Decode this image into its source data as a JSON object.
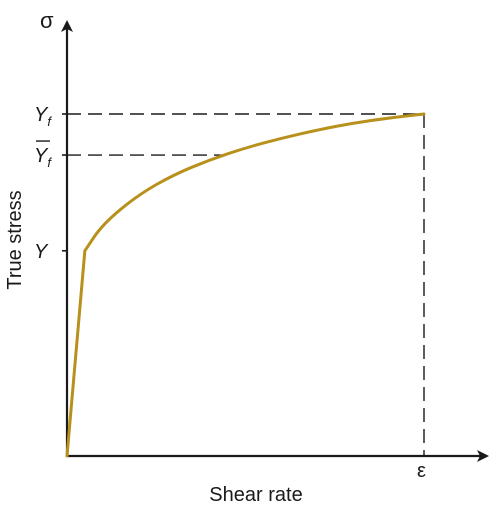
{
  "chart_data": {
    "type": "line",
    "title": "",
    "xlabel": "Shear rate",
    "ylabel": "True stress",
    "x_axis_symbol": "ε",
    "y_axis_symbol": "σ",
    "xlim": [
      0,
      1.0
    ],
    "ylim": [
      0,
      1.0
    ],
    "y_ticks": [
      {
        "key": "yf",
        "label": "Y",
        "subscript": "f",
        "overline": false,
        "value": 1.0
      },
      {
        "key": "yfbar",
        "label": "Y",
        "subscript": "f",
        "overline": true,
        "value": 0.88
      },
      {
        "key": "y",
        "label": "Y",
        "subscript": "",
        "overline": false,
        "value": 0.6
      }
    ],
    "series": [
      {
        "color": "#b8901c",
        "x": [
          0.0,
          0.05,
          0.1,
          0.2,
          0.3,
          0.4,
          0.5,
          0.6,
          0.7,
          0.8,
          0.9,
          1.0
        ],
        "y": [
          0.0,
          0.6,
          0.678,
          0.764,
          0.823,
          0.866,
          0.901,
          0.929,
          0.953,
          0.973,
          0.988,
          1.0
        ]
      }
    ],
    "guides": [
      {
        "type": "horizontal-dashed",
        "y": 1.0,
        "x_to": 1.0
      },
      {
        "type": "horizontal-dashed",
        "y": 0.88,
        "x_to": 0.44
      },
      {
        "type": "vertical-dashed",
        "x": 1.0,
        "y_to": 1.0
      }
    ],
    "grid": false,
    "legend": "none"
  }
}
